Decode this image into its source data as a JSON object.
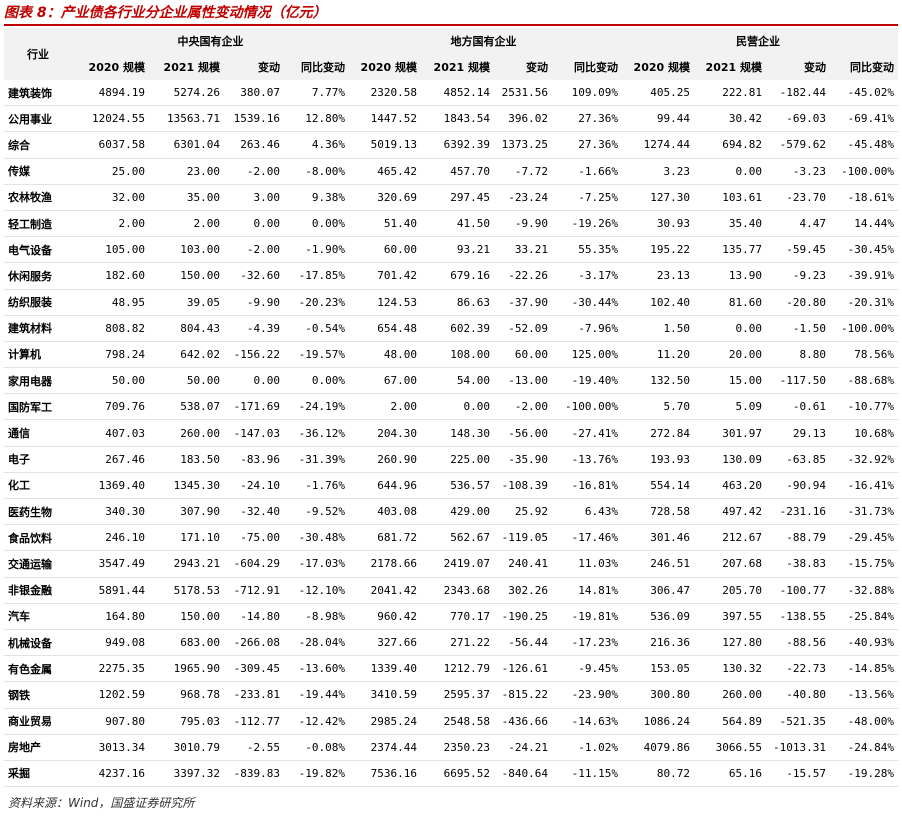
{
  "header": {
    "title": "图表 8：产业债各行业分企业属性变动情况（亿元）"
  },
  "table": {
    "industry_header": "行业",
    "groups": [
      {
        "name": "中央国有企业",
        "columns": [
          "2020 规模",
          "2021 规模",
          "变动",
          "同比变动"
        ]
      },
      {
        "name": "地方国有企业",
        "columns": [
          "2020 规模",
          "2021 规模",
          "变动",
          "同比变动"
        ]
      },
      {
        "name": "民营企业",
        "columns": [
          "2020 规模",
          "2021 规模",
          "变动",
          "同比变动"
        ]
      }
    ],
    "rows": [
      [
        "建筑装饰",
        "4894.19",
        "5274.26",
        "380.07",
        "7.77%",
        "2320.58",
        "4852.14",
        "2531.56",
        "109.09%",
        "405.25",
        "222.81",
        "-182.44",
        "-45.02%"
      ],
      [
        "公用事业",
        "12024.55",
        "13563.71",
        "1539.16",
        "12.80%",
        "1447.52",
        "1843.54",
        "396.02",
        "27.36%",
        "99.44",
        "30.42",
        "-69.03",
        "-69.41%"
      ],
      [
        "综合",
        "6037.58",
        "6301.04",
        "263.46",
        "4.36%",
        "5019.13",
        "6392.39",
        "1373.25",
        "27.36%",
        "1274.44",
        "694.82",
        "-579.62",
        "-45.48%"
      ],
      [
        "传媒",
        "25.00",
        "23.00",
        "-2.00",
        "-8.00%",
        "465.42",
        "457.70",
        "-7.72",
        "-1.66%",
        "3.23",
        "0.00",
        "-3.23",
        "-100.00%"
      ],
      [
        "农林牧渔",
        "32.00",
        "35.00",
        "3.00",
        "9.38%",
        "320.69",
        "297.45",
        "-23.24",
        "-7.25%",
        "127.30",
        "103.61",
        "-23.70",
        "-18.61%"
      ],
      [
        "轻工制造",
        "2.00",
        "2.00",
        "0.00",
        "0.00%",
        "51.40",
        "41.50",
        "-9.90",
        "-19.26%",
        "30.93",
        "35.40",
        "4.47",
        "14.44%"
      ],
      [
        "电气设备",
        "105.00",
        "103.00",
        "-2.00",
        "-1.90%",
        "60.00",
        "93.21",
        "33.21",
        "55.35%",
        "195.22",
        "135.77",
        "-59.45",
        "-30.45%"
      ],
      [
        "休闲服务",
        "182.60",
        "150.00",
        "-32.60",
        "-17.85%",
        "701.42",
        "679.16",
        "-22.26",
        "-3.17%",
        "23.13",
        "13.90",
        "-9.23",
        "-39.91%"
      ],
      [
        "纺织服装",
        "48.95",
        "39.05",
        "-9.90",
        "-20.23%",
        "124.53",
        "86.63",
        "-37.90",
        "-30.44%",
        "102.40",
        "81.60",
        "-20.80",
        "-20.31%"
      ],
      [
        "建筑材料",
        "808.82",
        "804.43",
        "-4.39",
        "-0.54%",
        "654.48",
        "602.39",
        "-52.09",
        "-7.96%",
        "1.50",
        "0.00",
        "-1.50",
        "-100.00%"
      ],
      [
        "计算机",
        "798.24",
        "642.02",
        "-156.22",
        "-19.57%",
        "48.00",
        "108.00",
        "60.00",
        "125.00%",
        "11.20",
        "20.00",
        "8.80",
        "78.56%"
      ],
      [
        "家用电器",
        "50.00",
        "50.00",
        "0.00",
        "0.00%",
        "67.00",
        "54.00",
        "-13.00",
        "-19.40%",
        "132.50",
        "15.00",
        "-117.50",
        "-88.68%"
      ],
      [
        "国防军工",
        "709.76",
        "538.07",
        "-171.69",
        "-24.19%",
        "2.00",
        "0.00",
        "-2.00",
        "-100.00%",
        "5.70",
        "5.09",
        "-0.61",
        "-10.77%"
      ],
      [
        "通信",
        "407.03",
        "260.00",
        "-147.03",
        "-36.12%",
        "204.30",
        "148.30",
        "-56.00",
        "-27.41%",
        "272.84",
        "301.97",
        "29.13",
        "10.68%"
      ],
      [
        "电子",
        "267.46",
        "183.50",
        "-83.96",
        "-31.39%",
        "260.90",
        "225.00",
        "-35.90",
        "-13.76%",
        "193.93",
        "130.09",
        "-63.85",
        "-32.92%"
      ],
      [
        "化工",
        "1369.40",
        "1345.30",
        "-24.10",
        "-1.76%",
        "644.96",
        "536.57",
        "-108.39",
        "-16.81%",
        "554.14",
        "463.20",
        "-90.94",
        "-16.41%"
      ],
      [
        "医药生物",
        "340.30",
        "307.90",
        "-32.40",
        "-9.52%",
        "403.08",
        "429.00",
        "25.92",
        "6.43%",
        "728.58",
        "497.42",
        "-231.16",
        "-31.73%"
      ],
      [
        "食品饮料",
        "246.10",
        "171.10",
        "-75.00",
        "-30.48%",
        "681.72",
        "562.67",
        "-119.05",
        "-17.46%",
        "301.46",
        "212.67",
        "-88.79",
        "-29.45%"
      ],
      [
        "交通运输",
        "3547.49",
        "2943.21",
        "-604.29",
        "-17.03%",
        "2178.66",
        "2419.07",
        "240.41",
        "11.03%",
        "246.51",
        "207.68",
        "-38.83",
        "-15.75%"
      ],
      [
        "非银金融",
        "5891.44",
        "5178.53",
        "-712.91",
        "-12.10%",
        "2041.42",
        "2343.68",
        "302.26",
        "14.81%",
        "306.47",
        "205.70",
        "-100.77",
        "-32.88%"
      ],
      [
        "汽车",
        "164.80",
        "150.00",
        "-14.80",
        "-8.98%",
        "960.42",
        "770.17",
        "-190.25",
        "-19.81%",
        "536.09",
        "397.55",
        "-138.55",
        "-25.84%"
      ],
      [
        "机械设备",
        "949.08",
        "683.00",
        "-266.08",
        "-28.04%",
        "327.66",
        "271.22",
        "-56.44",
        "-17.23%",
        "216.36",
        "127.80",
        "-88.56",
        "-40.93%"
      ],
      [
        "有色金属",
        "2275.35",
        "1965.90",
        "-309.45",
        "-13.60%",
        "1339.40",
        "1212.79",
        "-126.61",
        "-9.45%",
        "153.05",
        "130.32",
        "-22.73",
        "-14.85%"
      ],
      [
        "钢铁",
        "1202.59",
        "968.78",
        "-233.81",
        "-19.44%",
        "3410.59",
        "2595.37",
        "-815.22",
        "-23.90%",
        "300.80",
        "260.00",
        "-40.80",
        "-13.56%"
      ],
      [
        "商业贸易",
        "907.80",
        "795.03",
        "-112.77",
        "-12.42%",
        "2985.24",
        "2548.58",
        "-436.66",
        "-14.63%",
        "1086.24",
        "564.89",
        "-521.35",
        "-48.00%"
      ],
      [
        "房地产",
        "3013.34",
        "3010.79",
        "-2.55",
        "-0.08%",
        "2374.44",
        "2350.23",
        "-24.21",
        "-1.02%",
        "4079.86",
        "3066.55",
        "-1013.31",
        "-24.84%"
      ],
      [
        "采掘",
        "4237.16",
        "3397.32",
        "-839.83",
        "-19.82%",
        "7536.16",
        "6695.52",
        "-840.64",
        "-11.15%",
        "80.72",
        "65.16",
        "-15.57",
        "-19.28%"
      ]
    ]
  },
  "footer": {
    "source": "资料来源：Wind，国盛证券研究所"
  }
}
